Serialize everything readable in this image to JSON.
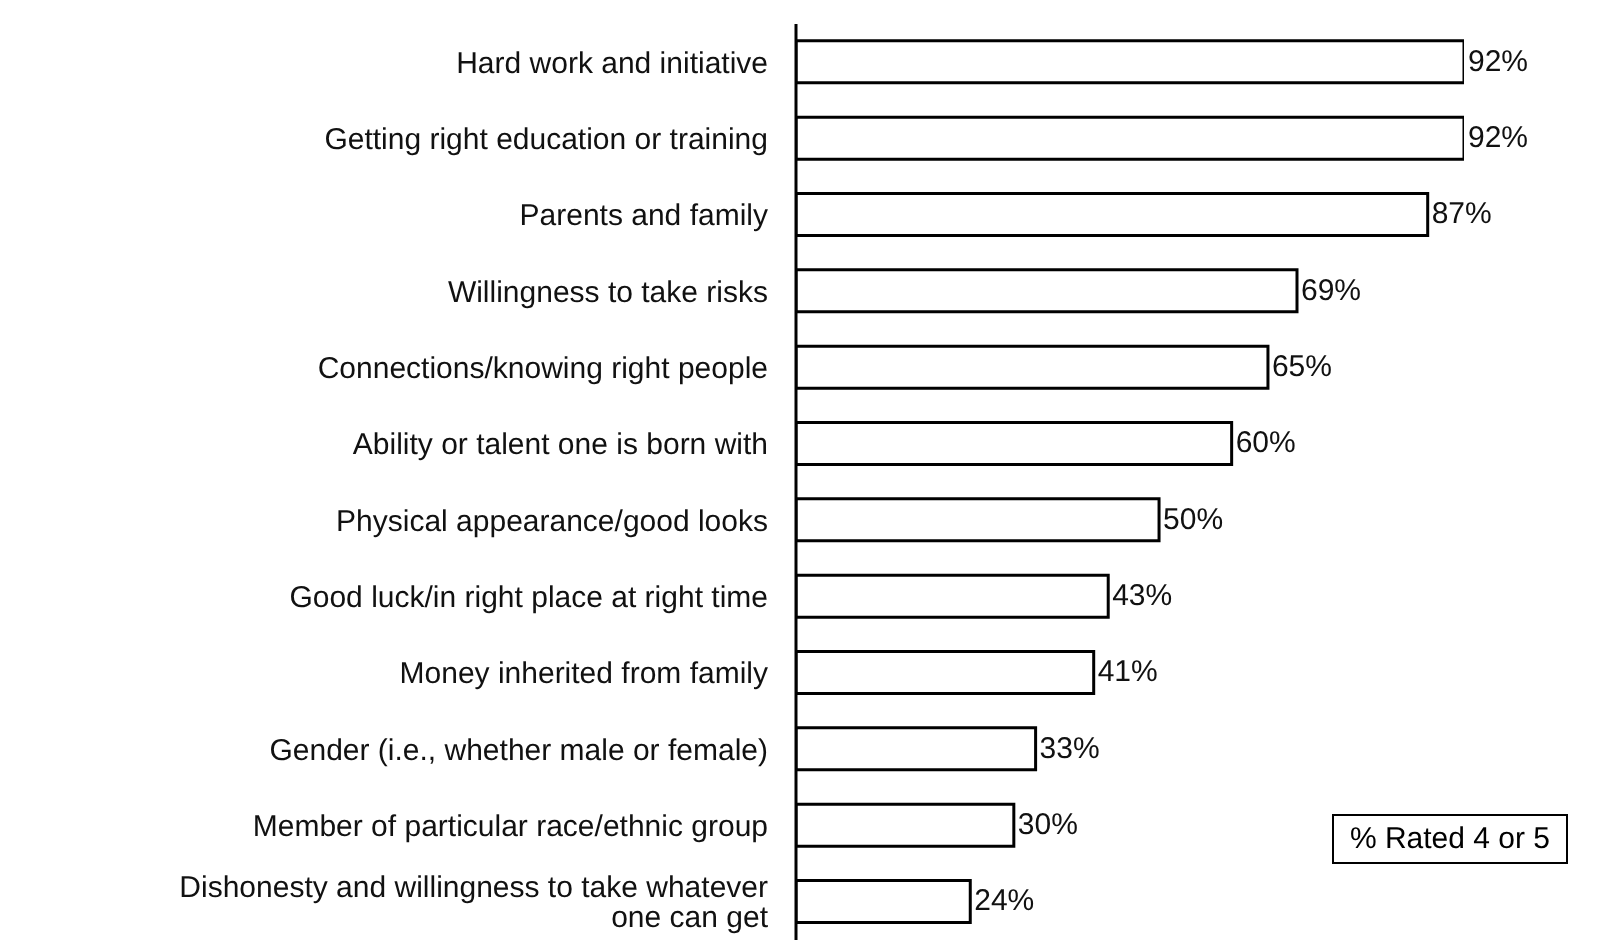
{
  "chart_data": {
    "type": "bar",
    "orientation": "horizontal",
    "categories": [
      "Hard work and initiative",
      "Getting right education or training",
      "Parents and family",
      "Willingness to take risks",
      "Connections/knowing right people",
      "Ability or talent one is born with",
      "Physical appearance/good looks",
      "Good luck/in right place at right time",
      "Money inherited from family",
      "Gender (i.e., whether male or female)",
      "Member of particular race/ethnic group",
      "Dishonesty and willingness to take whatever one can get"
    ],
    "values": [
      92,
      92,
      87,
      69,
      65,
      60,
      50,
      43,
      41,
      33,
      30,
      24
    ],
    "color": "#ffffff",
    "value_labels": [
      "92%",
      "92%",
      "87%",
      "69%",
      "65%",
      "60%",
      "50%",
      "43%",
      "41%",
      "33%",
      "30%",
      "24%"
    ],
    "annotations": [
      "% Rated 4 or 5"
    ]
  }
}
